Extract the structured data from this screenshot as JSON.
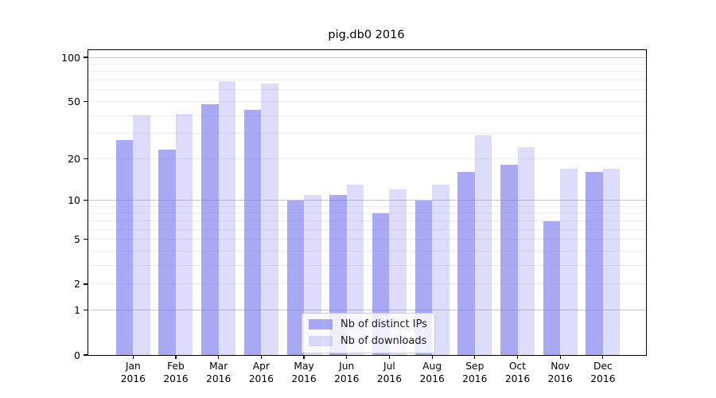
{
  "title": "pig.db0 2016",
  "chart_data": {
    "type": "bar",
    "title": "pig.db0 2016",
    "categories": [
      "Jan",
      "Feb",
      "Mar",
      "Apr",
      "May",
      "Jun",
      "Jul",
      "Aug",
      "Sep",
      "Oct",
      "Nov",
      "Dec"
    ],
    "category_year_label": "2016",
    "series": [
      {
        "name": "Nb of distinct IPs",
        "color": "#7b79f0",
        "fill_opacity": 0.65,
        "values": [
          27,
          23,
          48,
          44,
          10,
          11,
          8,
          10,
          16,
          18,
          7,
          16
        ]
      },
      {
        "name": "Nb of downloads",
        "color": "#7b79f0",
        "fill_opacity": 0.26,
        "values": [
          40,
          41,
          69,
          66,
          11,
          13,
          12,
          13,
          29,
          24,
          17,
          17
        ]
      }
    ],
    "yscale": "log1p",
    "ylim": [
      0,
      100
    ],
    "yticks": [
      100,
      50,
      20,
      10,
      5,
      2,
      1,
      0
    ],
    "grid": {
      "on": true,
      "major_values": [
        1,
        10,
        100
      ],
      "minor_values": [
        2,
        3,
        4,
        5,
        6,
        7,
        8,
        9,
        20,
        30,
        40,
        50,
        60,
        70,
        80,
        90
      ],
      "major_color": "#c6c6c6",
      "minor_color": "#ececec"
    },
    "legend_position": "lower-center",
    "axis_color": "#000000",
    "background_color": "#ffffff"
  }
}
